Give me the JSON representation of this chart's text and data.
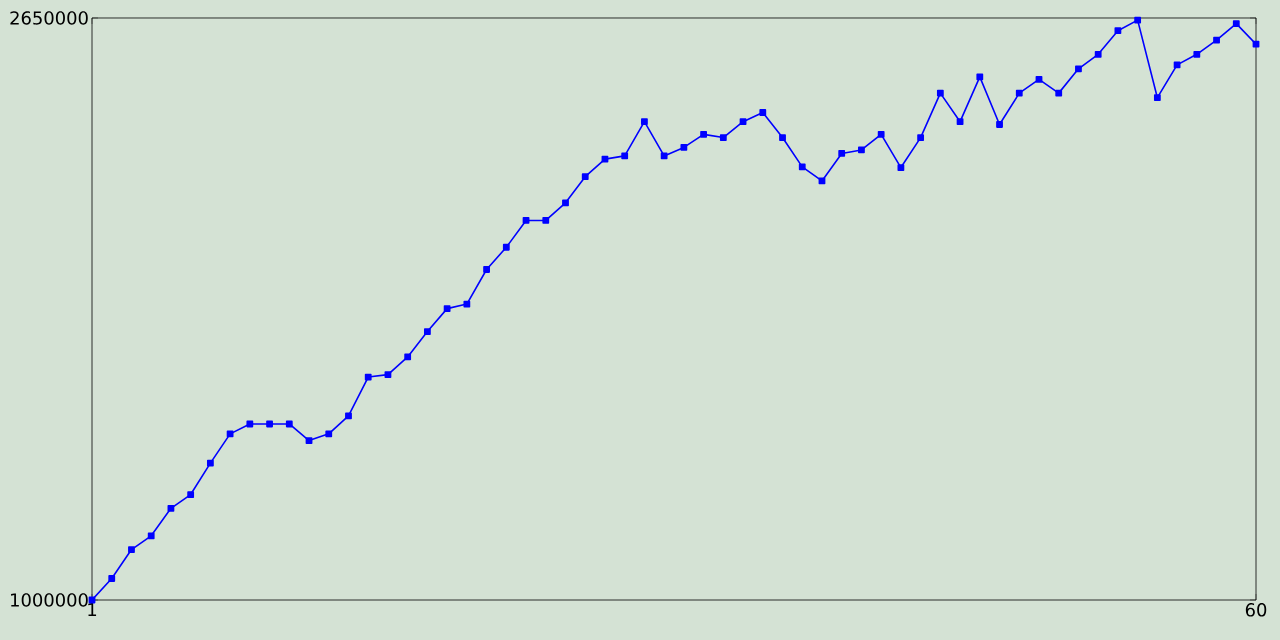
{
  "chart_data": {
    "type": "line",
    "x": [
      1,
      2,
      3,
      4,
      5,
      6,
      7,
      8,
      9,
      10,
      11,
      12,
      13,
      14,
      15,
      16,
      17,
      18,
      19,
      20,
      21,
      22,
      23,
      24,
      25,
      26,
      27,
      28,
      29,
      30,
      31,
      32,
      33,
      34,
      35,
      36,
      37,
      38,
      39,
      40,
      41,
      42,
      43,
      44,
      45,
      46,
      47,
      48,
      49,
      50,
      51,
      52,
      53,
      54,
      55,
      56,
      57,
      58,
      59,
      60
    ],
    "series": [
      {
        "color": "#0000ff",
        "values": [
          1000000,
          1061000,
          1143000,
          1182000,
          1260000,
          1299000,
          1388000,
          1471000,
          1499000,
          1499000,
          1499000,
          1452000,
          1471000,
          1522000,
          1632000,
          1639000,
          1689000,
          1761000,
          1826000,
          1839000,
          1937000,
          2000000,
          2076000,
          2076000,
          2126000,
          2200000,
          2250000,
          2259000,
          2356000,
          2259000,
          2283000,
          2320000,
          2311000,
          2356000,
          2382000,
          2311000,
          2228000,
          2188000,
          2266000,
          2276000,
          2320000,
          2226000,
          2311000,
          2437000,
          2356000,
          2483000,
          2348000,
          2437000,
          2476000,
          2437000,
          2506000,
          2547000,
          2614000,
          2644000,
          2424000,
          2517000,
          2547000,
          2587000,
          2634000,
          2576000
        ]
      }
    ],
    "xlim": [
      1,
      60
    ],
    "ylim": [
      1000000,
      2650000
    ],
    "xticks": [
      1,
      60
    ],
    "yticks": [
      1000000,
      2650000
    ],
    "grid": false,
    "marker": "square",
    "line_style": "solid"
  }
}
